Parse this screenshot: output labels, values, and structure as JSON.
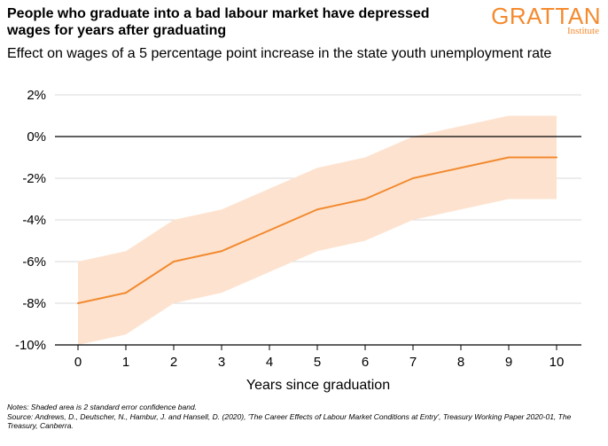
{
  "header": {
    "title": "People who graduate into a bad labour market have depressed wages for years after graduating",
    "subtitle": "Effect on wages of a 5 percentage point increase in the state youth unemployment rate",
    "logo_main": "GRATTAN",
    "logo_sub": "Institute"
  },
  "notes": {
    "line1": "Notes: Shaded area is 2 standard error confidence band.",
    "line2": "Source: Andrews, D., Deutscher, N., Hambur, J. and Hansell, D. (2020), 'The Career Effects of Labour Market Conditions at Entry', Treasury Working Paper 2020-01, The Treasury, Canberra."
  },
  "colors": {
    "accent": "#f58a2e",
    "band": "#fde3cf",
    "line": "#f28a30"
  },
  "chart_data": {
    "type": "line",
    "xlabel": "Years since graduation",
    "ylabel": "",
    "title": "",
    "x": [
      0,
      1,
      2,
      3,
      4,
      5,
      6,
      7,
      8,
      9,
      10
    ],
    "series": [
      {
        "values": [
          -8,
          -7.5,
          -6,
          -5.5,
          -4.5,
          -3.5,
          -3,
          -2,
          -1.5,
          -1,
          -1
        ]
      }
    ],
    "band": {
      "upper": [
        -6,
        -5.5,
        -4,
        -3.5,
        -2.5,
        -1.5,
        -1,
        0,
        0.5,
        1,
        1
      ],
      "lower": [
        -10,
        -9.5,
        -8,
        -7.5,
        -6.5,
        -5.5,
        -5,
        -4,
        -3.5,
        -3,
        -3
      ]
    },
    "ylim": [
      -10,
      2
    ],
    "xlim": [
      0,
      10
    ],
    "yticks": [
      2,
      0,
      -2,
      -4,
      -6,
      -8,
      -10
    ],
    "ytick_labels": [
      "2%",
      "0%",
      "-2%",
      "-4%",
      "-6%",
      "-8%",
      "-10%"
    ],
    "xtick_labels": [
      "0",
      "1",
      "2",
      "3",
      "4",
      "5",
      "6",
      "7",
      "8",
      "9",
      "10"
    ],
    "grid": true,
    "zero_line": true
  }
}
